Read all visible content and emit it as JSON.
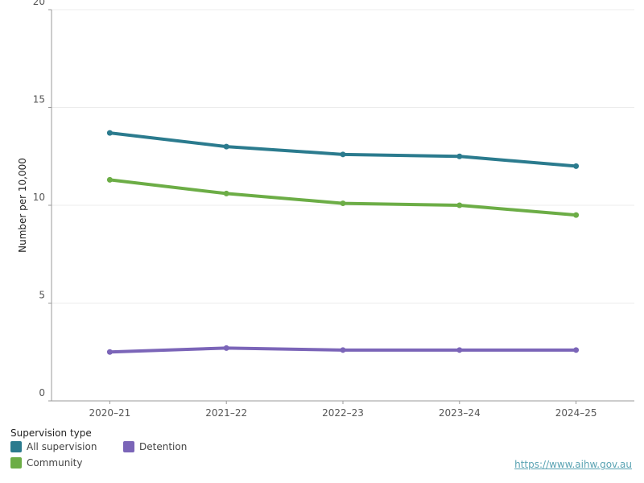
{
  "chart_data": {
    "type": "line",
    "title": "",
    "xlabel": "",
    "ylabel": "Number per 10,000",
    "categories": [
      "2020–21",
      "2021–22",
      "2022–23",
      "2023–24",
      "2024–25"
    ],
    "ylim": [
      0,
      20
    ],
    "yticks": [
      0,
      5,
      10,
      15,
      20
    ],
    "grid": true,
    "series": [
      {
        "name": "All supervision",
        "color": "#2b7b8e",
        "values": [
          13.7,
          13.0,
          12.6,
          12.5,
          12.0
        ]
      },
      {
        "name": "Community",
        "color": "#6cad46",
        "values": [
          11.3,
          10.6,
          10.1,
          10.0,
          9.5
        ]
      },
      {
        "name": "Detention",
        "color": "#7b65b8",
        "values": [
          2.5,
          2.7,
          2.6,
          2.6,
          2.6
        ]
      }
    ]
  },
  "legend": {
    "title": "Supervision type",
    "items": [
      {
        "label": "All supervision",
        "color": "#2b7b8e"
      },
      {
        "label": "Detention",
        "color": "#7b65b8"
      },
      {
        "label": "Community",
        "color": "#6cad46"
      }
    ]
  },
  "source_link": "https://www.aihw.gov.au"
}
